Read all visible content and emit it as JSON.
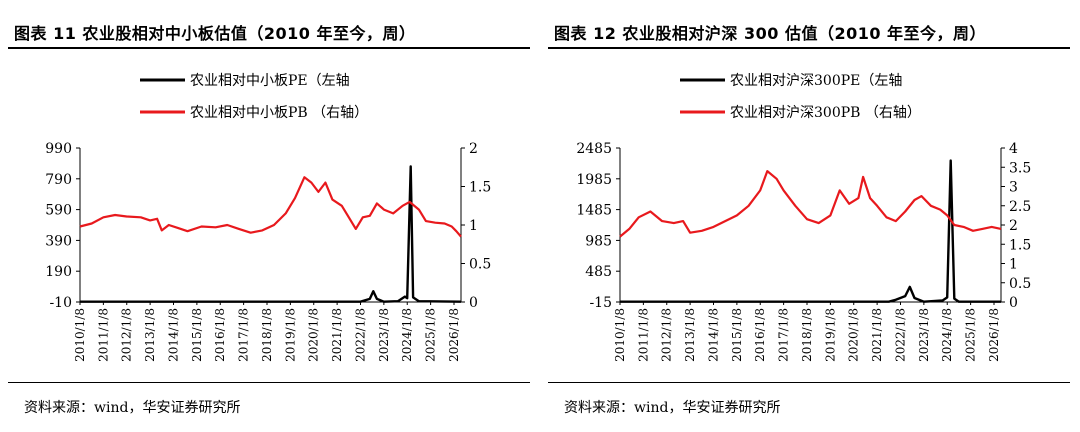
{
  "colors": {
    "pe": "#000000",
    "pb": "#e8191d",
    "axis": "#000000"
  },
  "chart_data": [
    {
      "type": "line",
      "title": "图表 11 农业股相对中小板估值（2010 年至今，周）",
      "source": "资料来源：wind，华安证券研究所",
      "x_labels": [
        "2010/1/8",
        "2011/1/8",
        "2012/1/8",
        "2013/1/8",
        "2014/1/8",
        "2015/1/8",
        "2016/1/8",
        "2017/1/8",
        "2018/1/8",
        "2019/1/8",
        "2020/1/8",
        "2021/1/8",
        "2022/1/8",
        "2023/1/8",
        "2024/1/8",
        "2025/1/8",
        "2026/1/8"
      ],
      "x_range": [
        2010.0,
        2026.3
      ],
      "y_left": {
        "ticks": [
          "990",
          "790",
          "590",
          "390",
          "190",
          "-10"
        ],
        "range": [
          -10,
          990
        ]
      },
      "y_right": {
        "ticks": [
          "2",
          "1.5",
          "1",
          "0.5",
          "0"
        ],
        "range": [
          0,
          2
        ]
      },
      "series": [
        {
          "name": "农业相对中小板PE（左轴",
          "axis": "left",
          "points": [
            [
              2010.0,
              -8
            ],
            [
              2022.0,
              -8
            ],
            [
              2022.4,
              10
            ],
            [
              2022.55,
              60
            ],
            [
              2022.7,
              10
            ],
            [
              2023.0,
              -8
            ],
            [
              2023.6,
              -5
            ],
            [
              2023.9,
              25
            ],
            [
              2024.0,
              15
            ],
            [
              2024.15,
              870
            ],
            [
              2024.25,
              20
            ],
            [
              2024.5,
              -5
            ],
            [
              2026.3,
              -8
            ]
          ]
        },
        {
          "name": "农业相对中小板PB （右轴）",
          "axis": "right",
          "points": [
            [
              2010.0,
              0.98
            ],
            [
              2010.5,
              1.02
            ],
            [
              2011.0,
              1.1
            ],
            [
              2011.5,
              1.13
            ],
            [
              2012.0,
              1.11
            ],
            [
              2012.6,
              1.1
            ],
            [
              2013.0,
              1.06
            ],
            [
              2013.3,
              1.08
            ],
            [
              2013.5,
              0.93
            ],
            [
              2013.8,
              1.0
            ],
            [
              2014.2,
              0.96
            ],
            [
              2014.6,
              0.92
            ],
            [
              2015.2,
              0.98
            ],
            [
              2015.8,
              0.97
            ],
            [
              2016.3,
              1.0
            ],
            [
              2016.8,
              0.95
            ],
            [
              2017.3,
              0.9
            ],
            [
              2017.8,
              0.93
            ],
            [
              2018.3,
              1.0
            ],
            [
              2018.8,
              1.15
            ],
            [
              2019.2,
              1.35
            ],
            [
              2019.6,
              1.62
            ],
            [
              2019.9,
              1.55
            ],
            [
              2020.2,
              1.43
            ],
            [
              2020.5,
              1.55
            ],
            [
              2020.8,
              1.33
            ],
            [
              2021.2,
              1.25
            ],
            [
              2021.5,
              1.1
            ],
            [
              2021.8,
              0.95
            ],
            [
              2022.1,
              1.1
            ],
            [
              2022.4,
              1.12
            ],
            [
              2022.7,
              1.28
            ],
            [
              2023.0,
              1.2
            ],
            [
              2023.4,
              1.15
            ],
            [
              2023.8,
              1.25
            ],
            [
              2024.1,
              1.3
            ],
            [
              2024.5,
              1.2
            ],
            [
              2024.8,
              1.05
            ],
            [
              2025.2,
              1.03
            ],
            [
              2025.6,
              1.02
            ],
            [
              2025.9,
              0.98
            ],
            [
              2026.1,
              0.92
            ],
            [
              2026.3,
              0.85
            ]
          ]
        }
      ]
    },
    {
      "type": "line",
      "title": "图表 12 农业股相对沪深 300 估值（2010 年至今，周）",
      "source": "资料来源：wind，华安证券研究所",
      "x_labels": [
        "2010/1/8",
        "2011/1/8",
        "2012/1/8",
        "2013/1/8",
        "2014/1/8",
        "2015/1/8",
        "2016/1/8",
        "2017/1/8",
        "2018/1/8",
        "2019/1/8",
        "2020/1/8",
        "2021/1/8",
        "2022/1/8",
        "2023/1/8",
        "2024/1/8",
        "2025/1/8",
        "2026/1/8"
      ],
      "x_range": [
        2010.0,
        2026.3
      ],
      "y_left": {
        "ticks": [
          "2485",
          "1985",
          "1485",
          "985",
          "485",
          "-15"
        ],
        "range": [
          -15,
          2485
        ]
      },
      "y_right": {
        "ticks": [
          "4",
          "3.5",
          "3",
          "2.5",
          "2",
          "1.5",
          "1",
          "0.5",
          "0"
        ],
        "range": [
          0,
          4
        ]
      },
      "series": [
        {
          "name": "农业相对沪深300PE（左轴",
          "axis": "left",
          "points": [
            [
              2010.0,
              -10
            ],
            [
              2021.5,
              -10
            ],
            [
              2021.8,
              20
            ],
            [
              2022.2,
              80
            ],
            [
              2022.4,
              230
            ],
            [
              2022.6,
              50
            ],
            [
              2023.0,
              -10
            ],
            [
              2023.8,
              10
            ],
            [
              2024.0,
              60
            ],
            [
              2024.15,
              2280
            ],
            [
              2024.3,
              40
            ],
            [
              2024.5,
              -10
            ],
            [
              2026.3,
              -10
            ]
          ]
        },
        {
          "name": "农业相对沪深300PB （右轴）",
          "axis": "right",
          "points": [
            [
              2010.0,
              1.7
            ],
            [
              2010.4,
              1.9
            ],
            [
              2010.8,
              2.2
            ],
            [
              2011.3,
              2.35
            ],
            [
              2011.8,
              2.1
            ],
            [
              2012.3,
              2.05
            ],
            [
              2012.7,
              2.1
            ],
            [
              2013.0,
              1.8
            ],
            [
              2013.5,
              1.85
            ],
            [
              2014.0,
              1.95
            ],
            [
              2014.5,
              2.1
            ],
            [
              2015.0,
              2.25
            ],
            [
              2015.5,
              2.5
            ],
            [
              2016.0,
              2.9
            ],
            [
              2016.3,
              3.4
            ],
            [
              2016.7,
              3.2
            ],
            [
              2017.0,
              2.9
            ],
            [
              2017.5,
              2.5
            ],
            [
              2018.0,
              2.15
            ],
            [
              2018.5,
              2.05
            ],
            [
              2019.0,
              2.25
            ],
            [
              2019.4,
              2.9
            ],
            [
              2019.8,
              2.55
            ],
            [
              2020.2,
              2.7
            ],
            [
              2020.4,
              3.25
            ],
            [
              2020.7,
              2.7
            ],
            [
              2021.0,
              2.5
            ],
            [
              2021.4,
              2.2
            ],
            [
              2021.8,
              2.1
            ],
            [
              2022.2,
              2.35
            ],
            [
              2022.6,
              2.65
            ],
            [
              2022.9,
              2.75
            ],
            [
              2023.3,
              2.5
            ],
            [
              2023.7,
              2.4
            ],
            [
              2024.0,
              2.25
            ],
            [
              2024.3,
              2.0
            ],
            [
              2024.7,
              1.95
            ],
            [
              2025.1,
              1.85
            ],
            [
              2025.5,
              1.9
            ],
            [
              2025.9,
              1.95
            ],
            [
              2026.3,
              1.9
            ]
          ]
        }
      ]
    }
  ]
}
